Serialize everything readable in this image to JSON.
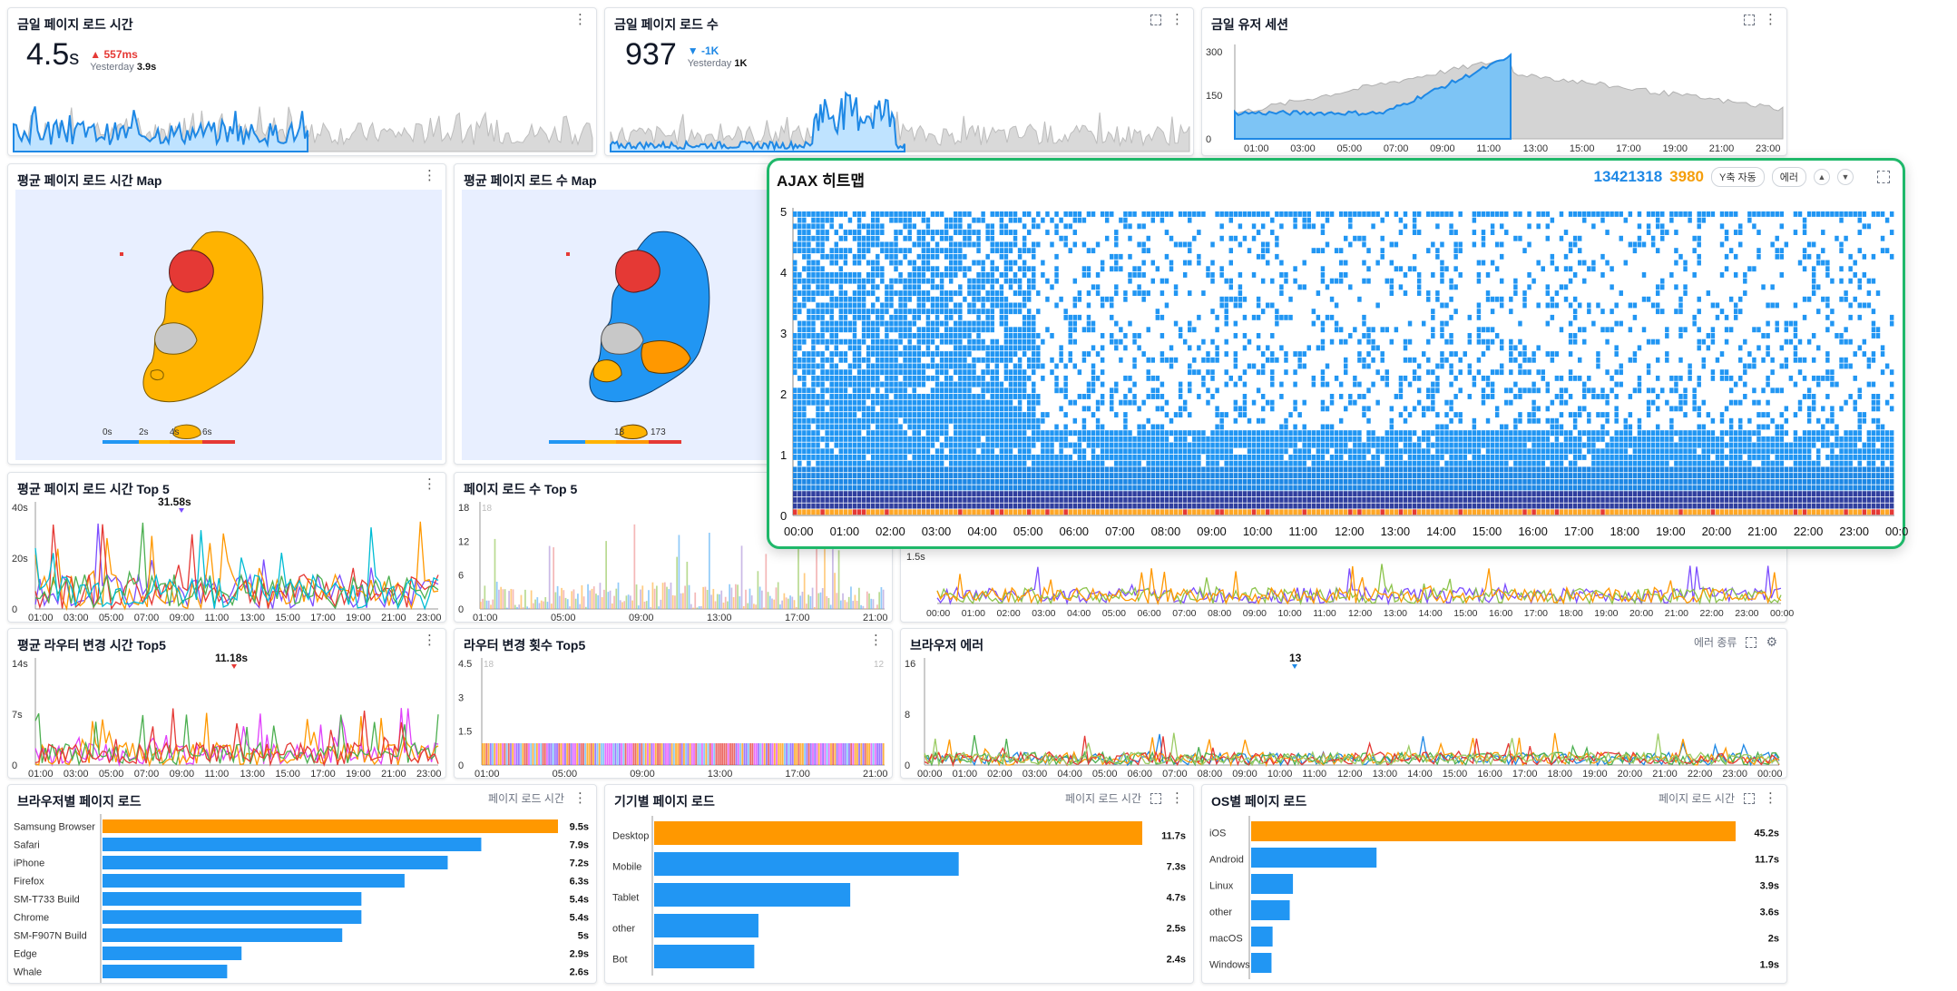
{
  "panels": {
    "load_time": {
      "title": "금일 페이지 로드 시간",
      "value": "4.5",
      "unit": "s",
      "delta": "557ms",
      "yesterday_label": "Yesterday",
      "yesterday_value": "3.9s"
    },
    "load_count": {
      "title": "금일 페이지 로드 수",
      "value": "937",
      "delta": "-1K",
      "yesterday_label": "Yesterday",
      "yesterday_value": "1K"
    },
    "user_session": {
      "title": "금일 유저 세션",
      "yticks": [
        "300",
        "150",
        "0"
      ],
      "xticks": [
        "01:00",
        "03:00",
        "05:00",
        "07:00",
        "09:00",
        "11:00",
        "13:00",
        "15:00",
        "17:00",
        "19:00",
        "21:00",
        "23:00"
      ]
    },
    "map_load_time": {
      "title": "평균 페이지 로드 시간 Map",
      "legend": [
        "0s",
        "2s",
        "4s",
        "6s"
      ]
    },
    "map_load_count": {
      "title": "평균 페이지 로드 수 Map",
      "legend": [
        "18",
        "173"
      ]
    },
    "top5_load_time": {
      "title": "평균 페이지 로드 시간 Top 5",
      "yticks": [
        "40s",
        "20s",
        "0"
      ],
      "xticks": [
        "01:00",
        "03:00",
        "05:00",
        "07:00",
        "09:00",
        "11:00",
        "13:00",
        "15:00",
        "17:00",
        "19:00",
        "21:00",
        "23:00"
      ],
      "peak_label": "31.58s"
    },
    "top5_load_count": {
      "title": "페이지 로드 수 Top 5",
      "yticks": [
        "18",
        "12",
        "6",
        "0"
      ],
      "faint": "18",
      "xticks": [
        "01:00",
        "05:00",
        "09:00",
        "13:00",
        "17:00",
        "21:00"
      ]
    },
    "hidden_panel": {
      "ytick": "1.5s",
      "xticks": [
        "00:00",
        "01:00",
        "02:00",
        "03:00",
        "04:00",
        "05:00",
        "06:00",
        "07:00",
        "08:00",
        "09:00",
        "10:00",
        "11:00",
        "12:00",
        "13:00",
        "14:00",
        "15:00",
        "16:00",
        "17:00",
        "18:00",
        "19:00",
        "20:00",
        "21:00",
        "22:00",
        "23:00",
        "00:00"
      ]
    },
    "router_time": {
      "title": "평균 라우터 변경 시간 Top5",
      "yticks": [
        "14s",
        "7s",
        "0"
      ],
      "peak_label": "11.18s",
      "xticks": [
        "01:00",
        "03:00",
        "05:00",
        "07:00",
        "09:00",
        "11:00",
        "13:00",
        "15:00",
        "17:00",
        "19:00",
        "21:00",
        "23:00"
      ]
    },
    "router_count": {
      "title": "라우터 변경 횟수 Top5",
      "yticks": [
        "4.5",
        "3",
        "1.5",
        "0"
      ],
      "faint_left": "18",
      "faint_right": "12",
      "xticks": [
        "01:00",
        "05:00",
        "09:00",
        "13:00",
        "17:00",
        "21:00"
      ]
    },
    "browser_error": {
      "title": "브라우저 에러",
      "action_label": "에러 종류",
      "yticks": [
        "16",
        "8",
        "0"
      ],
      "peak_label": "13",
      "xticks": [
        "00:00",
        "01:00",
        "02:00",
        "03:00",
        "04:00",
        "05:00",
        "06:00",
        "07:00",
        "08:00",
        "09:00",
        "10:00",
        "11:00",
        "12:00",
        "13:00",
        "14:00",
        "15:00",
        "16:00",
        "17:00",
        "18:00",
        "19:00",
        "20:00",
        "21:00",
        "22:00",
        "23:00",
        "00:00"
      ]
    },
    "browser_load": {
      "title": "브라우저별 페이지 로드",
      "action_label": "페이지 로드 시간",
      "rows": [
        {
          "label": "Samsung Browser",
          "value": "9.5s",
          "v": 9.5
        },
        {
          "label": "Safari",
          "value": "7.9s",
          "v": 7.9
        },
        {
          "label": "iPhone",
          "value": "7.2s",
          "v": 7.2
        },
        {
          "label": "Firefox",
          "value": "6.3s",
          "v": 6.3
        },
        {
          "label": "SM-T733 Build",
          "value": "5.4s",
          "v": 5.4
        },
        {
          "label": "Chrome",
          "value": "5.4s",
          "v": 5.4
        },
        {
          "label": "SM-F907N Build",
          "value": "5s",
          "v": 5.0
        },
        {
          "label": "Edge",
          "value": "2.9s",
          "v": 2.9
        },
        {
          "label": "Whale",
          "value": "2.6s",
          "v": 2.6
        }
      ]
    },
    "device_load": {
      "title": "기기별 페이지 로드",
      "action_label": "페이지 로드 시간",
      "rows": [
        {
          "label": "Desktop",
          "value": "11.7s",
          "v": 11.7
        },
        {
          "label": "Mobile",
          "value": "7.3s",
          "v": 7.3
        },
        {
          "label": "Tablet",
          "value": "4.7s",
          "v": 4.7
        },
        {
          "label": "other",
          "value": "2.5s",
          "v": 2.5
        },
        {
          "label": "Bot",
          "value": "2.4s",
          "v": 2.4
        }
      ]
    },
    "os_load": {
      "title": "OS별 페이지 로드",
      "action_label": "페이지 로드 시간",
      "rows": [
        {
          "label": "iOS",
          "value": "45.2s",
          "v": 45.2
        },
        {
          "label": "Android",
          "value": "11.7s",
          "v": 11.7
        },
        {
          "label": "Linux",
          "value": "3.9s",
          "v": 3.9
        },
        {
          "label": "other",
          "value": "3.6s",
          "v": 3.6
        },
        {
          "label": "macOS",
          "value": "2s",
          "v": 2.0
        },
        {
          "label": "Windows",
          "value": "1.9s",
          "v": 1.9
        }
      ]
    }
  },
  "heatmap": {
    "title": "AJAX 히트맵",
    "count_success": "13421318",
    "count_error": "3980",
    "y_auto_label": "Y축 자동",
    "error_label": "에러",
    "yticks": [
      "5",
      "4",
      "3",
      "2",
      "1",
      "0"
    ],
    "xticks": [
      "00:00",
      "01:00",
      "02:00",
      "03:00",
      "04:00",
      "05:00",
      "06:00",
      "07:00",
      "08:00",
      "09:00",
      "10:00",
      "11:00",
      "12:00",
      "13:00",
      "14:00",
      "15:00",
      "16:00",
      "17:00",
      "18:00",
      "19:00",
      "20:00",
      "21:00",
      "22:00",
      "23:00",
      "00:0"
    ]
  },
  "colors": {
    "blue": "#2196f3",
    "orange": "#ff9800",
    "red": "#e53935",
    "green_border": "#1fb86a",
    "navy": "#303f9f"
  }
}
